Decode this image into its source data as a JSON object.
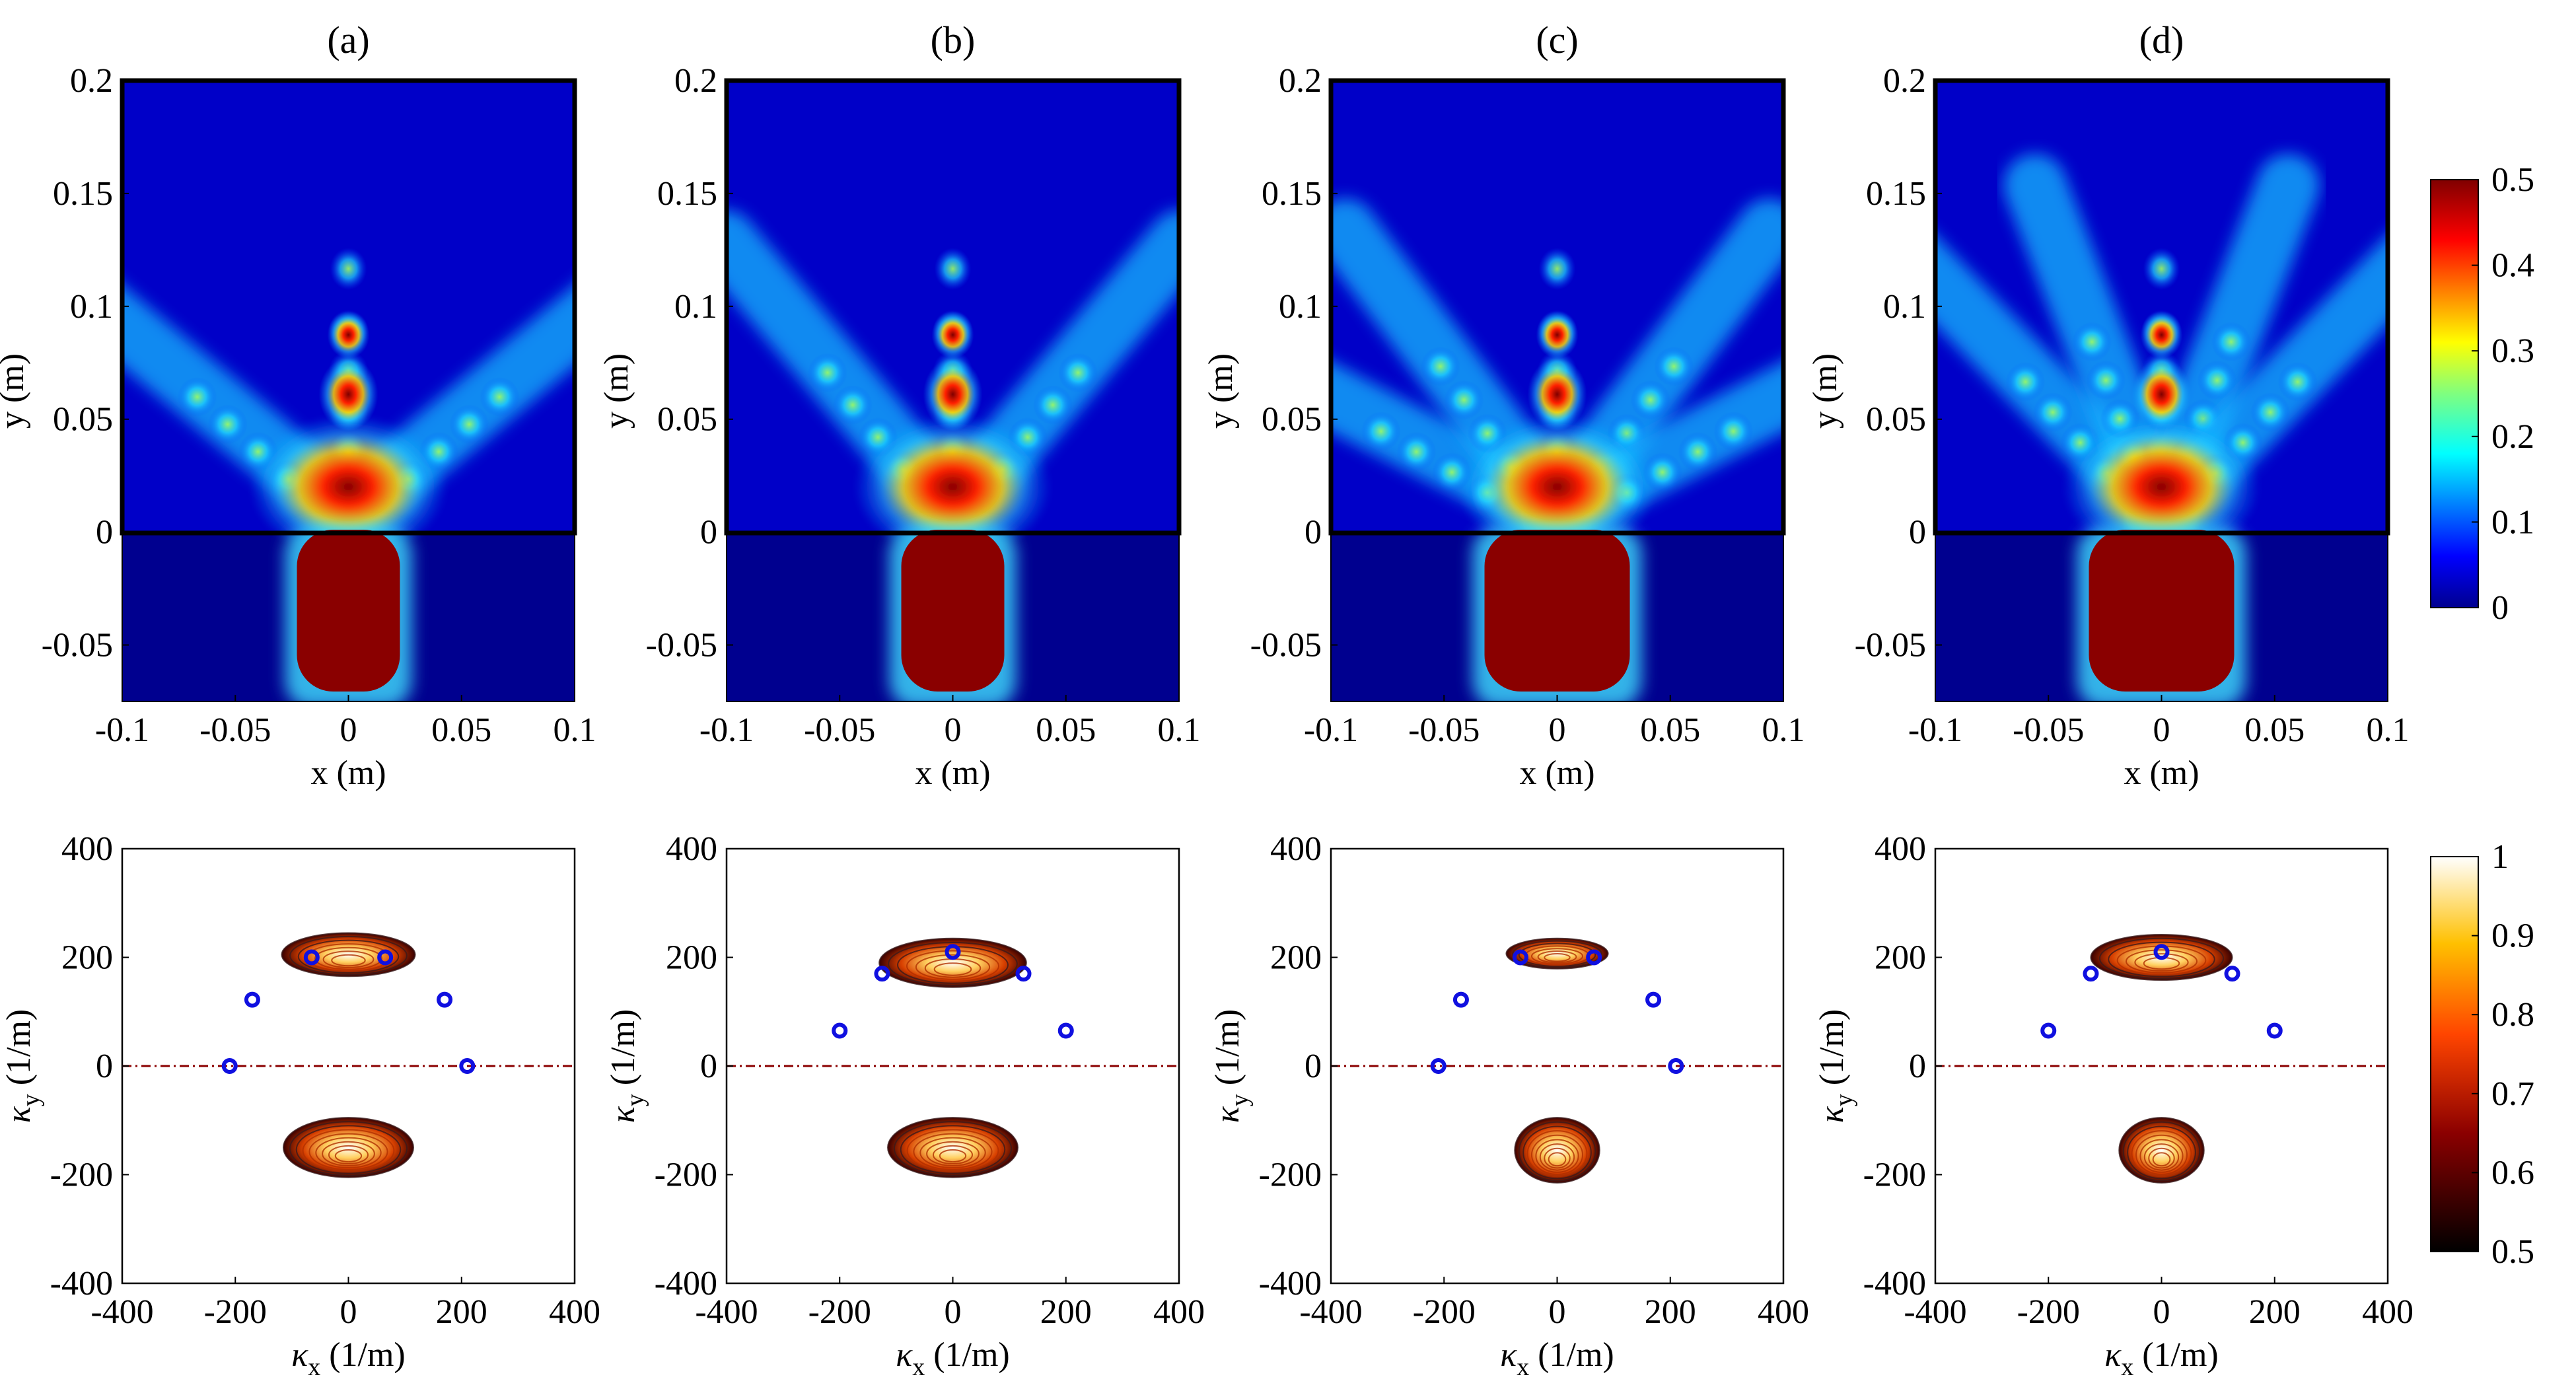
{
  "panel_labels": [
    "(a)",
    "(b)",
    "(c)",
    "(d)"
  ],
  "chart_data": [
    {
      "type": "heatmap",
      "group": "field-amplitude",
      "panels": [
        "(a)",
        "(b)",
        "(c)",
        "(d)"
      ],
      "xlabel": "x (m)",
      "ylabel": "y (m)",
      "xlim": [
        -0.1,
        0.1
      ],
      "ylim": [
        -0.075,
        0.2
      ],
      "xticks": [
        "-0.1",
        "-0.05",
        "0",
        "0.05",
        "0.1"
      ],
      "yticks": [
        "-0.05",
        "0",
        "0.05",
        "0.1",
        "0.15",
        "0.2"
      ],
      "xtick_values": [
        -0.1,
        -0.05,
        0,
        0.05,
        0.1
      ],
      "ytick_values": [
        -0.05,
        0,
        0.05,
        0.1,
        0.15,
        0.2
      ],
      "interface_y": 0,
      "colormap": "jet",
      "colorbar": {
        "min": 0,
        "max": 0.5,
        "ticks": [
          "0",
          "0.1",
          "0.2",
          "0.3",
          "0.4",
          "0.5"
        ],
        "tick_values": [
          0,
          0.1,
          0.2,
          0.3,
          0.4,
          0.5
        ]
      },
      "beam_directions_deg": [
        [
          -48,
          0,
          48
        ],
        [
          -38,
          0,
          38
        ],
        [
          -60,
          -35,
          0,
          35,
          60
        ],
        [
          -42,
          -20,
          0,
          20,
          42
        ]
      ]
    },
    {
      "type": "scatter",
      "group": "spatial-spectrum",
      "panels": [
        "(a)",
        "(b)",
        "(c)",
        "(d)"
      ],
      "xlabel": "κ_x (1/m)",
      "ylabel": "κ_y (1/m)",
      "xlabel_main": "κ",
      "xlabel_sub": "x",
      "xlabel_unit": "(1/m)",
      "ylabel_main": "κ",
      "ylabel_sub": "y",
      "ylabel_unit": "(1/m)",
      "xlim": [
        -400,
        400
      ],
      "ylim": [
        -400,
        400
      ],
      "xticks": [
        "-400",
        "-200",
        "0",
        "200",
        "400"
      ],
      "yticks": [
        "-400",
        "-200",
        "0",
        "200",
        "400"
      ],
      "xtick_values": [
        -400,
        -200,
        0,
        200,
        400
      ],
      "ytick_values": [
        -400,
        -200,
        0,
        200,
        400
      ],
      "reference_line_y": 0,
      "colormap": "hot",
      "colorbar": {
        "min": 0.5,
        "max": 1,
        "ticks": [
          "0.5",
          "0.6",
          "0.7",
          "0.8",
          "0.9",
          "1"
        ],
        "tick_values": [
          0.5,
          0.6,
          0.7,
          0.8,
          0.9,
          1.0
        ]
      },
      "series": [
        {
          "panel": "(a)",
          "points": [
            [
              -210,
              0
            ],
            [
              -170,
              122
            ],
            [
              -65,
              200
            ],
            [
              65,
              200
            ],
            [
              170,
              122
            ],
            [
              210,
              0
            ]
          ],
          "upper_lobe": {
            "cx": 0,
            "cy": 205,
            "rx": 118,
            "ry": 40
          },
          "lower_lobe": {
            "cx": 0,
            "cy": -150,
            "rx": 115,
            "ry": 55
          }
        },
        {
          "panel": "(b)",
          "points": [
            [
              -200,
              65
            ],
            [
              -125,
              170
            ],
            [
              0,
              210
            ],
            [
              125,
              170
            ],
            [
              200,
              65
            ]
          ],
          "upper_lobe": {
            "cx": 0,
            "cy": 190,
            "rx": 130,
            "ry": 45
          },
          "lower_lobe": {
            "cx": 0,
            "cy": -150,
            "rx": 115,
            "ry": 55
          }
        },
        {
          "panel": "(c)",
          "points": [
            [
              -210,
              0
            ],
            [
              -170,
              122
            ],
            [
              -65,
              200
            ],
            [
              65,
              200
            ],
            [
              170,
              122
            ],
            [
              210,
              0
            ]
          ],
          "upper_lobe": {
            "cx": 0,
            "cy": 207,
            "rx": 90,
            "ry": 28
          },
          "lower_lobe": {
            "cx": 0,
            "cy": -155,
            "rx": 75,
            "ry": 60
          }
        },
        {
          "panel": "(d)",
          "points": [
            [
              -200,
              65
            ],
            [
              -125,
              170
            ],
            [
              0,
              210
            ],
            [
              125,
              170
            ],
            [
              200,
              65
            ]
          ],
          "upper_lobe": {
            "cx": 0,
            "cy": 200,
            "rx": 125,
            "ry": 42
          },
          "lower_lobe": {
            "cx": 0,
            "cy": -155,
            "rx": 75,
            "ry": 60
          }
        }
      ]
    }
  ]
}
